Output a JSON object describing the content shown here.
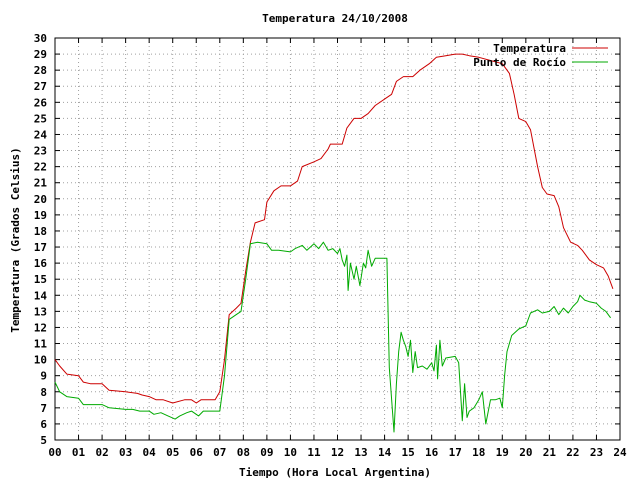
{
  "chart_data": {
    "type": "line",
    "title": "Temperatura 24/10/2008",
    "xlabel": "Tiempo (Hora Local Argentina)",
    "ylabel": "Temperatura (Grados Celsius)",
    "xlim": [
      0,
      24
    ],
    "ylim": [
      5,
      30
    ],
    "x_ticks": [
      "00",
      "01",
      "02",
      "03",
      "04",
      "05",
      "06",
      "07",
      "08",
      "09",
      "10",
      "11",
      "12",
      "13",
      "14",
      "15",
      "16",
      "17",
      "18",
      "19",
      "20",
      "21",
      "22",
      "23",
      "24"
    ],
    "y_ticks": [
      5,
      6,
      7,
      8,
      9,
      10,
      11,
      12,
      13,
      14,
      15,
      16,
      17,
      18,
      19,
      20,
      21,
      22,
      23,
      24,
      25,
      26,
      27,
      28,
      29,
      30
    ],
    "grid": true,
    "legend_position": "top-right",
    "series": [
      {
        "name": "Temperatura",
        "color": "#cc0000",
        "points": [
          [
            0.0,
            10.0
          ],
          [
            0.2,
            9.6
          ],
          [
            0.5,
            9.1
          ],
          [
            1.0,
            9.0
          ],
          [
            1.2,
            8.6
          ],
          [
            1.5,
            8.5
          ],
          [
            2.0,
            8.5
          ],
          [
            2.3,
            8.1
          ],
          [
            3.0,
            8.0
          ],
          [
            3.5,
            7.9
          ],
          [
            3.7,
            7.8
          ],
          [
            4.0,
            7.7
          ],
          [
            4.3,
            7.5
          ],
          [
            4.6,
            7.5
          ],
          [
            5.0,
            7.3
          ],
          [
            5.5,
            7.5
          ],
          [
            5.8,
            7.5
          ],
          [
            6.0,
            7.3
          ],
          [
            6.2,
            7.5
          ],
          [
            6.8,
            7.5
          ],
          [
            7.0,
            8.0
          ],
          [
            7.2,
            10.0
          ],
          [
            7.4,
            12.8
          ],
          [
            7.7,
            13.2
          ],
          [
            7.9,
            13.5
          ],
          [
            8.1,
            15.5
          ],
          [
            8.3,
            17.3
          ],
          [
            8.5,
            18.5
          ],
          [
            8.9,
            18.7
          ],
          [
            9.0,
            19.8
          ],
          [
            9.3,
            20.5
          ],
          [
            9.6,
            20.8
          ],
          [
            10.0,
            20.8
          ],
          [
            10.3,
            21.1
          ],
          [
            10.5,
            22.0
          ],
          [
            11.0,
            22.3
          ],
          [
            11.3,
            22.5
          ],
          [
            11.6,
            23.1
          ],
          [
            11.7,
            23.4
          ],
          [
            12.2,
            23.4
          ],
          [
            12.4,
            24.4
          ],
          [
            12.7,
            25.0
          ],
          [
            13.0,
            25.0
          ],
          [
            13.3,
            25.3
          ],
          [
            13.6,
            25.8
          ],
          [
            14.0,
            26.2
          ],
          [
            14.3,
            26.5
          ],
          [
            14.5,
            27.3
          ],
          [
            14.8,
            27.6
          ],
          [
            15.2,
            27.6
          ],
          [
            15.5,
            28.0
          ],
          [
            15.9,
            28.4
          ],
          [
            16.2,
            28.8
          ],
          [
            16.6,
            28.9
          ],
          [
            17.0,
            29.0
          ],
          [
            17.3,
            29.0
          ],
          [
            17.6,
            28.9
          ],
          [
            18.0,
            28.8
          ],
          [
            18.5,
            28.6
          ],
          [
            19.0,
            28.4
          ],
          [
            19.3,
            27.8
          ],
          [
            19.5,
            26.5
          ],
          [
            19.7,
            25.0
          ],
          [
            20.0,
            24.8
          ],
          [
            20.2,
            24.3
          ],
          [
            20.5,
            22.0
          ],
          [
            20.7,
            20.7
          ],
          [
            20.9,
            20.3
          ],
          [
            21.2,
            20.2
          ],
          [
            21.4,
            19.5
          ],
          [
            21.6,
            18.2
          ],
          [
            21.9,
            17.3
          ],
          [
            22.2,
            17.1
          ],
          [
            22.4,
            16.8
          ],
          [
            22.7,
            16.2
          ],
          [
            23.0,
            15.9
          ],
          [
            23.3,
            15.7
          ],
          [
            23.5,
            15.2
          ],
          [
            23.7,
            14.4
          ]
        ]
      },
      {
        "name": "Punto de Rocío",
        "color": "#00aa00",
        "points": [
          [
            0.0,
            8.6
          ],
          [
            0.2,
            8.0
          ],
          [
            0.5,
            7.7
          ],
          [
            1.0,
            7.6
          ],
          [
            1.2,
            7.2
          ],
          [
            1.5,
            7.2
          ],
          [
            2.0,
            7.2
          ],
          [
            2.3,
            7.0
          ],
          [
            3.0,
            6.9
          ],
          [
            3.3,
            6.9
          ],
          [
            3.6,
            6.8
          ],
          [
            4.0,
            6.8
          ],
          [
            4.2,
            6.6
          ],
          [
            4.5,
            6.7
          ],
          [
            4.8,
            6.5
          ],
          [
            5.1,
            6.3
          ],
          [
            5.3,
            6.5
          ],
          [
            5.6,
            6.7
          ],
          [
            5.8,
            6.8
          ],
          [
            6.1,
            6.5
          ],
          [
            6.3,
            6.8
          ],
          [
            6.8,
            6.8
          ],
          [
            7.0,
            6.8
          ],
          [
            7.2,
            9.0
          ],
          [
            7.4,
            12.5
          ],
          [
            7.7,
            12.8
          ],
          [
            7.9,
            13.0
          ],
          [
            8.1,
            15.0
          ],
          [
            8.3,
            17.2
          ],
          [
            8.6,
            17.3
          ],
          [
            9.0,
            17.2
          ],
          [
            9.2,
            16.8
          ],
          [
            9.5,
            16.8
          ],
          [
            10.0,
            16.7
          ],
          [
            10.2,
            16.9
          ],
          [
            10.5,
            17.1
          ],
          [
            10.7,
            16.8
          ],
          [
            11.0,
            17.2
          ],
          [
            11.2,
            16.9
          ],
          [
            11.4,
            17.3
          ],
          [
            11.6,
            16.8
          ],
          [
            11.8,
            16.9
          ],
          [
            12.0,
            16.6
          ],
          [
            12.1,
            16.9
          ],
          [
            12.2,
            16.2
          ],
          [
            12.3,
            15.8
          ],
          [
            12.4,
            16.5
          ],
          [
            12.45,
            14.3
          ],
          [
            12.55,
            16.0
          ],
          [
            12.7,
            15.0
          ],
          [
            12.8,
            15.8
          ],
          [
            12.95,
            14.6
          ],
          [
            13.1,
            16.0
          ],
          [
            13.2,
            15.7
          ],
          [
            13.3,
            16.8
          ],
          [
            13.45,
            15.8
          ],
          [
            13.6,
            16.3
          ],
          [
            13.9,
            16.3
          ],
          [
            14.1,
            16.3
          ],
          [
            14.2,
            9.5
          ],
          [
            14.4,
            5.5
          ],
          [
            14.5,
            8.5
          ],
          [
            14.6,
            10.5
          ],
          [
            14.7,
            11.7
          ],
          [
            14.8,
            11.2
          ],
          [
            14.9,
            10.8
          ],
          [
            15.0,
            10.2
          ],
          [
            15.1,
            11.2
          ],
          [
            15.2,
            9.2
          ],
          [
            15.3,
            10.5
          ],
          [
            15.4,
            9.5
          ],
          [
            15.6,
            9.6
          ],
          [
            15.8,
            9.4
          ],
          [
            16.0,
            9.8
          ],
          [
            16.1,
            9.3
          ],
          [
            16.2,
            10.9
          ],
          [
            16.25,
            8.8
          ],
          [
            16.35,
            11.2
          ],
          [
            16.45,
            9.6
          ],
          [
            16.6,
            10.1
          ],
          [
            17.0,
            10.2
          ],
          [
            17.15,
            9.8
          ],
          [
            17.3,
            6.2
          ],
          [
            17.4,
            8.5
          ],
          [
            17.5,
            6.4
          ],
          [
            17.6,
            6.8
          ],
          [
            17.8,
            7.0
          ],
          [
            18.0,
            7.5
          ],
          [
            18.15,
            8.0
          ],
          [
            18.3,
            6.0
          ],
          [
            18.5,
            7.5
          ],
          [
            18.7,
            7.5
          ],
          [
            18.9,
            7.6
          ],
          [
            19.0,
            7.0
          ],
          [
            19.1,
            9.0
          ],
          [
            19.2,
            10.5
          ],
          [
            19.4,
            11.5
          ],
          [
            19.7,
            11.9
          ],
          [
            20.0,
            12.1
          ],
          [
            20.2,
            12.9
          ],
          [
            20.5,
            13.1
          ],
          [
            20.7,
            12.9
          ],
          [
            21.0,
            13.0
          ],
          [
            21.2,
            13.3
          ],
          [
            21.4,
            12.8
          ],
          [
            21.6,
            13.2
          ],
          [
            21.8,
            12.9
          ],
          [
            22.0,
            13.3
          ],
          [
            22.2,
            13.6
          ],
          [
            22.3,
            14.0
          ],
          [
            22.5,
            13.7
          ],
          [
            22.7,
            13.6
          ],
          [
            23.0,
            13.5
          ],
          [
            23.2,
            13.2
          ],
          [
            23.4,
            13.0
          ],
          [
            23.6,
            12.6
          ]
        ]
      }
    ]
  }
}
